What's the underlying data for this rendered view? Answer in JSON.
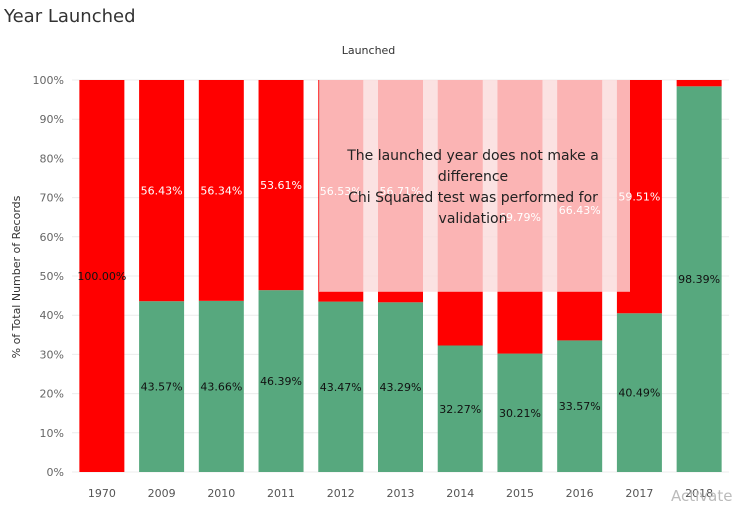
{
  "page": {
    "title": "Year Launched",
    "watermark": "Activate"
  },
  "annotation": {
    "line1": "The launched year does not make a",
    "line2": "difference",
    "line3": "Chi Squared test was performed for",
    "line4": "validation"
  },
  "colors": {
    "no": "#ff0000",
    "yes": "#57a87e",
    "annotation_bg": "#fadcdc"
  },
  "chart_data": {
    "type": "bar",
    "stacked": true,
    "title": "Launched",
    "ylabel": "% of Total Number of Records",
    "xlabel": "",
    "ylim": [
      0,
      100
    ],
    "yticks": [
      "0%",
      "10%",
      "20%",
      "30%",
      "40%",
      "50%",
      "60%",
      "70%",
      "80%",
      "90%",
      "100%"
    ],
    "categories": [
      "1970",
      "2009",
      "2010",
      "2011",
      "2012",
      "2013",
      "2014",
      "2015",
      "2016",
      "2017",
      "2018"
    ],
    "series": [
      {
        "color": "#57a87e",
        "values": [
          0,
          43.57,
          43.66,
          46.39,
          43.47,
          43.29,
          32.27,
          30.21,
          33.57,
          40.49,
          98.39
        ],
        "labels": [
          "",
          "43.57%",
          "43.66%",
          "46.39%",
          "43.47%",
          "43.29%",
          "32.27%",
          "30.21%",
          "33.57%",
          "40.49%",
          "98.39%"
        ]
      },
      {
        "color": "#ff0000",
        "values": [
          100,
          56.43,
          56.34,
          53.61,
          56.53,
          56.71,
          67.73,
          69.79,
          66.43,
          59.51,
          1.61
        ],
        "labels": [
          "100.00%",
          "56.43%",
          "56.34%",
          "53.61%",
          "56.53%",
          "56.71%",
          "",
          "69.79%",
          "66.43%",
          "59.51%",
          ""
        ]
      }
    ]
  }
}
